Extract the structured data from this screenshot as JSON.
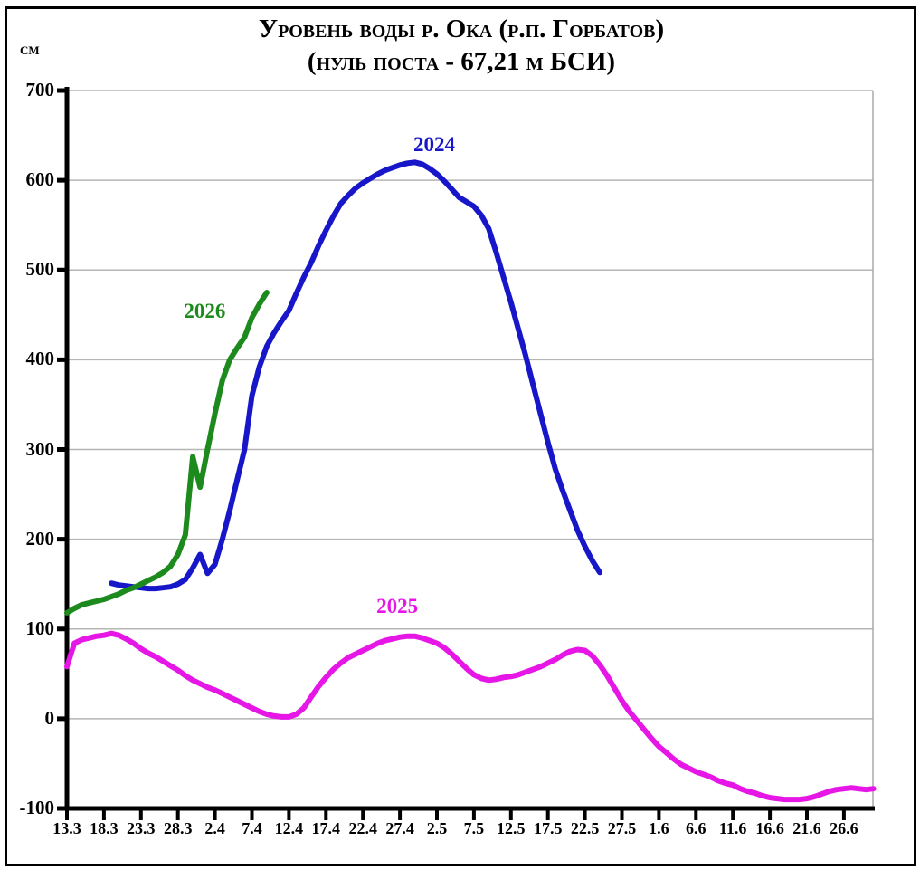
{
  "chart_data": {
    "type": "line",
    "title": "Уровень воды р. Ока (р.п. Горбатов)",
    "subtitle": "(нуль поста - 67,21 м БСИ)",
    "ylabel": "см",
    "xlabel": "",
    "ylim": [
      -100,
      700
    ],
    "ytick_step": 100,
    "yticks": [
      700,
      600,
      500,
      400,
      300,
      200,
      100,
      0,
      -100
    ],
    "xticks": [
      "13.3",
      "18.3",
      "23.3",
      "28.3",
      "2.4",
      "7.4",
      "12.4",
      "17.4",
      "22.4",
      "27.4",
      "2.5",
      "7.5",
      "12.5",
      "17.5",
      "22.5",
      "27.5",
      "1.6",
      "6.6",
      "11.6",
      "16.6",
      "21.6",
      "26.6"
    ],
    "x_units": "date (day.month)",
    "y_units": "cm",
    "grid": "horizontal",
    "legend_position": "inline-labels-near-curves",
    "series": [
      {
        "name": "2024",
        "color": "#1717c9",
        "label_at": {
          "date": "2.5",
          "value": 638
        },
        "points": [
          [
            "19.3",
            151
          ],
          [
            "20.3",
            149
          ],
          [
            "21.3",
            148
          ],
          [
            "22.3",
            147
          ],
          [
            "23.3",
            146
          ],
          [
            "24.3",
            145
          ],
          [
            "25.3",
            145
          ],
          [
            "26.3",
            146
          ],
          [
            "27.3",
            147
          ],
          [
            "28.3",
            150
          ],
          [
            "29.3",
            155
          ],
          [
            "30.3",
            168
          ],
          [
            "31.3",
            183
          ],
          [
            "1.4",
            162
          ],
          [
            "2.4",
            172
          ],
          [
            "3.4",
            200
          ],
          [
            "4.4",
            232
          ],
          [
            "5.4",
            266
          ],
          [
            "6.4",
            300
          ],
          [
            "7.4",
            360
          ],
          [
            "8.4",
            392
          ],
          [
            "9.4",
            415
          ],
          [
            "10.4",
            430
          ],
          [
            "11.4",
            443
          ],
          [
            "12.4",
            455
          ],
          [
            "13.4",
            474
          ],
          [
            "14.4",
            492
          ],
          [
            "15.4",
            508
          ],
          [
            "16.4",
            527
          ],
          [
            "17.4",
            544
          ],
          [
            "18.4",
            560
          ],
          [
            "19.4",
            574
          ],
          [
            "20.4",
            583
          ],
          [
            "21.4",
            591
          ],
          [
            "22.4",
            597
          ],
          [
            "23.4",
            602
          ],
          [
            "24.4",
            607
          ],
          [
            "25.4",
            611
          ],
          [
            "26.4",
            614
          ],
          [
            "27.4",
            617
          ],
          [
            "28.4",
            619
          ],
          [
            "29.4",
            620
          ],
          [
            "30.4",
            618
          ],
          [
            "1.5",
            613
          ],
          [
            "2.5",
            607
          ],
          [
            "3.5",
            599
          ],
          [
            "4.5",
            590
          ],
          [
            "5.5",
            581
          ],
          [
            "6.5",
            576
          ],
          [
            "7.5",
            571
          ],
          [
            "8.5",
            561
          ],
          [
            "9.5",
            546
          ],
          [
            "10.5",
            520
          ],
          [
            "11.5",
            492
          ],
          [
            "12.5",
            464
          ],
          [
            "13.5",
            434
          ],
          [
            "14.5",
            404
          ],
          [
            "15.5",
            372
          ],
          [
            "16.5",
            340
          ],
          [
            "17.5",
            308
          ],
          [
            "18.5",
            278
          ],
          [
            "19.5",
            254
          ],
          [
            "20.5",
            232
          ],
          [
            "21.5",
            210
          ],
          [
            "22.5",
            192
          ],
          [
            "23.5",
            176
          ],
          [
            "24.5",
            163
          ]
        ]
      },
      {
        "name": "2025",
        "color": "#e616e6",
        "label_at": {
          "date": "27.4",
          "value": 124
        },
        "points": [
          [
            "13.3",
            58
          ],
          [
            "14.3",
            84
          ],
          [
            "15.3",
            88
          ],
          [
            "16.3",
            90
          ],
          [
            "17.3",
            92
          ],
          [
            "18.3",
            93
          ],
          [
            "19.3",
            95
          ],
          [
            "20.3",
            93
          ],
          [
            "21.3",
            89
          ],
          [
            "22.3",
            84
          ],
          [
            "23.3",
            78
          ],
          [
            "24.3",
            73
          ],
          [
            "25.3",
            69
          ],
          [
            "26.3",
            64
          ],
          [
            "27.3",
            59
          ],
          [
            "28.3",
            54
          ],
          [
            "29.3",
            48
          ],
          [
            "30.3",
            43
          ],
          [
            "31.3",
            39
          ],
          [
            "1.4",
            35
          ],
          [
            "2.4",
            32
          ],
          [
            "3.4",
            28
          ],
          [
            "4.4",
            24
          ],
          [
            "5.4",
            20
          ],
          [
            "6.4",
            16
          ],
          [
            "7.4",
            12
          ],
          [
            "8.4",
            8
          ],
          [
            "9.4",
            5
          ],
          [
            "10.4",
            3
          ],
          [
            "11.4",
            2
          ],
          [
            "12.4",
            2
          ],
          [
            "13.4",
            5
          ],
          [
            "14.4",
            12
          ],
          [
            "15.4",
            24
          ],
          [
            "16.4",
            36
          ],
          [
            "17.4",
            46
          ],
          [
            "18.4",
            55
          ],
          [
            "19.4",
            62
          ],
          [
            "20.4",
            68
          ],
          [
            "21.4",
            72
          ],
          [
            "22.4",
            76
          ],
          [
            "23.4",
            80
          ],
          [
            "24.4",
            84
          ],
          [
            "25.4",
            87
          ],
          [
            "26.4",
            89
          ],
          [
            "27.4",
            91
          ],
          [
            "28.4",
            92
          ],
          [
            "29.4",
            92
          ],
          [
            "30.4",
            90
          ],
          [
            "1.5",
            87
          ],
          [
            "2.5",
            84
          ],
          [
            "3.5",
            79
          ],
          [
            "4.5",
            72
          ],
          [
            "5.5",
            64
          ],
          [
            "6.5",
            56
          ],
          [
            "7.5",
            49
          ],
          [
            "8.5",
            45
          ],
          [
            "9.5",
            43
          ],
          [
            "10.5",
            44
          ],
          [
            "11.5",
            46
          ],
          [
            "12.5",
            47
          ],
          [
            "13.5",
            49
          ],
          [
            "14.5",
            52
          ],
          [
            "15.5",
            55
          ],
          [
            "16.5",
            58
          ],
          [
            "17.5",
            62
          ],
          [
            "18.5",
            66
          ],
          [
            "19.5",
            71
          ],
          [
            "20.5",
            75
          ],
          [
            "21.5",
            77
          ],
          [
            "22.5",
            76
          ],
          [
            "23.5",
            70
          ],
          [
            "24.5",
            60
          ],
          [
            "25.5",
            48
          ],
          [
            "26.5",
            34
          ],
          [
            "27.5",
            20
          ],
          [
            "28.5",
            8
          ],
          [
            "29.5",
            -2
          ],
          [
            "30.5",
            -12
          ],
          [
            "31.5",
            -22
          ],
          [
            "1.6",
            -31
          ],
          [
            "2.6",
            -38
          ],
          [
            "3.6",
            -45
          ],
          [
            "4.6",
            -51
          ],
          [
            "5.6",
            -55
          ],
          [
            "6.6",
            -59
          ],
          [
            "7.6",
            -62
          ],
          [
            "8.6",
            -65
          ],
          [
            "9.6",
            -69
          ],
          [
            "10.6",
            -72
          ],
          [
            "11.6",
            -74
          ],
          [
            "12.6",
            -78
          ],
          [
            "13.6",
            -81
          ],
          [
            "14.6",
            -83
          ],
          [
            "15.6",
            -86
          ],
          [
            "16.6",
            -88
          ],
          [
            "17.6",
            -89
          ],
          [
            "18.6",
            -90
          ],
          [
            "19.6",
            -90
          ],
          [
            "20.6",
            -90
          ],
          [
            "21.6",
            -89
          ],
          [
            "22.6",
            -87
          ],
          [
            "23.6",
            -84
          ],
          [
            "24.6",
            -81
          ],
          [
            "25.6",
            -79
          ],
          [
            "26.6",
            -78
          ],
          [
            "27.6",
            -77
          ],
          [
            "28.6",
            -78
          ],
          [
            "29.6",
            -79
          ],
          [
            "30.6",
            -78
          ]
        ]
      },
      {
        "name": "2026",
        "color": "#1d8a1d",
        "label_at": {
          "date": "1.4",
          "value": 453
        },
        "points": [
          [
            "13.3",
            118
          ],
          [
            "14.3",
            123
          ],
          [
            "15.3",
            127
          ],
          [
            "16.3",
            129
          ],
          [
            "17.3",
            131
          ],
          [
            "18.3",
            133
          ],
          [
            "19.3",
            136
          ],
          [
            "20.3",
            139
          ],
          [
            "21.3",
            143
          ],
          [
            "22.3",
            146
          ],
          [
            "23.3",
            150
          ],
          [
            "24.3",
            154
          ],
          [
            "25.3",
            158
          ],
          [
            "26.3",
            163
          ],
          [
            "27.3",
            170
          ],
          [
            "28.3",
            183
          ],
          [
            "29.3",
            205
          ],
          [
            "30.3",
            292
          ],
          [
            "31.3",
            258
          ],
          [
            "1.4",
            300
          ],
          [
            "2.4",
            340
          ],
          [
            "3.4",
            377
          ],
          [
            "4.4",
            400
          ],
          [
            "5.4",
            413
          ],
          [
            "6.4",
            425
          ],
          [
            "7.4",
            447
          ],
          [
            "8.4",
            462
          ],
          [
            "9.4",
            475
          ]
        ]
      }
    ],
    "style_colors": {
      "grid": "#b5b5b5",
      "plot_right_border": "#a9a9a9",
      "axis": "#000000",
      "background": "#ffffff",
      "frame_border": "#000000"
    }
  }
}
